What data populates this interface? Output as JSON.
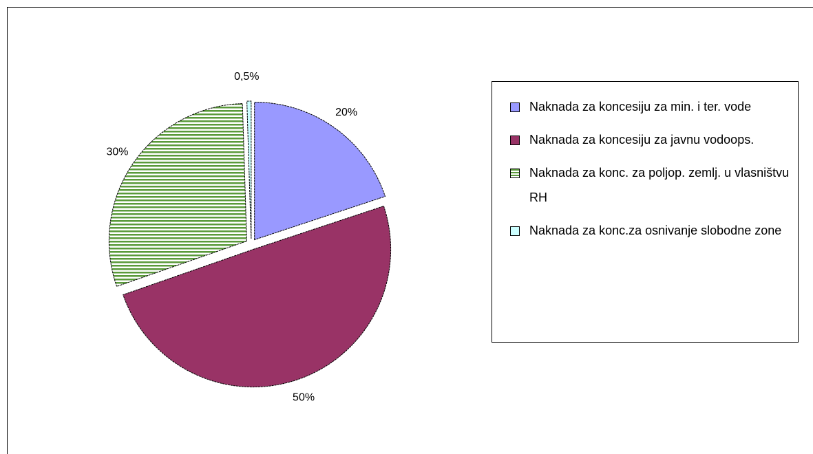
{
  "chart_data": {
    "type": "pie",
    "categories": [
      "Naknada za koncesiju za min. i ter. vode",
      "Naknada za koncesiju za  javnu vodoops.",
      "Naknada za konc. za poljop. zemlj. u vlasništvu RH",
      "Naknada za konc.za osnivanje slobodne zone"
    ],
    "values": [
      20,
      50,
      30,
      0.5
    ],
    "value_labels": [
      "20%",
      "50%",
      "30%",
      "0,5%"
    ],
    "colors": [
      "#9999ff",
      "#993366",
      "#5a9a3a",
      "#ccffff"
    ],
    "hatch": [
      false,
      false,
      true,
      false
    ],
    "legend": "right"
  }
}
